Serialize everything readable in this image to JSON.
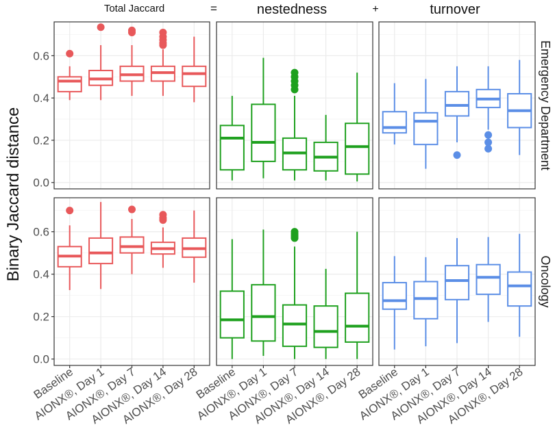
{
  "chart_data": {
    "type": "box",
    "y_axis_label": "Binary Jaccard distance",
    "column_titles": [
      {
        "label": "Total Jaccard",
        "operator": "="
      },
      {
        "label": "nestedness",
        "operator": "+"
      },
      {
        "label": "turnover",
        "operator": ""
      }
    ],
    "row_labels": [
      "Emergency Department",
      "Oncology"
    ],
    "categories": [
      "Baseline",
      "AIONX®, Day 1",
      "AIONX®, Day 7",
      "AIONX®, Day 14",
      "AIONX®, Day 28"
    ],
    "ylim": [
      -0.03,
      0.76
    ],
    "yticks": [
      0.0,
      0.2,
      0.4,
      0.6
    ],
    "ytick_labels": [
      "0.0",
      "0.2",
      "0.4",
      "0.6"
    ],
    "colors": {
      "total": "#e8585a",
      "nestedness": "#1ea01e",
      "turnover": "#5b8ee6"
    },
    "panels": [
      {
        "row": 0,
        "col": 0,
        "color": "total",
        "boxes": [
          {
            "whisker_low": 0.39,
            "q1": 0.43,
            "median": 0.48,
            "q3": 0.5,
            "whisker_high": 0.55,
            "outliers": [
              0.61
            ]
          },
          {
            "whisker_low": 0.39,
            "q1": 0.46,
            "median": 0.49,
            "q3": 0.53,
            "whisker_high": 0.65,
            "outliers": [
              0.735
            ]
          },
          {
            "whisker_low": 0.41,
            "q1": 0.48,
            "median": 0.51,
            "q3": 0.55,
            "whisker_high": 0.65,
            "outliers": [
              0.71,
              0.72
            ]
          },
          {
            "whisker_low": 0.41,
            "q1": 0.48,
            "median": 0.52,
            "q3": 0.55,
            "whisker_high": 0.63,
            "outliers": [
              0.65,
              0.66,
              0.675,
              0.69,
              0.71
            ]
          },
          {
            "whisker_low": 0.38,
            "q1": 0.455,
            "median": 0.515,
            "q3": 0.55,
            "whisker_high": 0.69,
            "outliers": []
          }
        ]
      },
      {
        "row": 0,
        "col": 1,
        "color": "nestedness",
        "boxes": [
          {
            "whisker_low": 0.01,
            "q1": 0.06,
            "median": 0.21,
            "q3": 0.27,
            "whisker_high": 0.41,
            "outliers": []
          },
          {
            "whisker_low": 0.02,
            "q1": 0.1,
            "median": 0.19,
            "q3": 0.37,
            "whisker_high": 0.59,
            "outliers": []
          },
          {
            "whisker_low": 0.01,
            "q1": 0.06,
            "median": 0.14,
            "q3": 0.21,
            "whisker_high": 0.41,
            "outliers": [
              0.44,
              0.46,
              0.48,
              0.5,
              0.52
            ]
          },
          {
            "whisker_low": 0.01,
            "q1": 0.055,
            "median": 0.12,
            "q3": 0.19,
            "whisker_high": 0.32,
            "outliers": []
          },
          {
            "whisker_low": 0.005,
            "q1": 0.04,
            "median": 0.17,
            "q3": 0.28,
            "whisker_high": 0.52,
            "outliers": []
          }
        ]
      },
      {
        "row": 0,
        "col": 2,
        "color": "turnover",
        "boxes": [
          {
            "whisker_low": 0.18,
            "q1": 0.235,
            "median": 0.26,
            "q3": 0.335,
            "whisker_high": 0.47,
            "outliers": []
          },
          {
            "whisker_low": 0.065,
            "q1": 0.18,
            "median": 0.29,
            "q3": 0.33,
            "whisker_high": 0.49,
            "outliers": []
          },
          {
            "whisker_low": 0.19,
            "q1": 0.315,
            "median": 0.365,
            "q3": 0.43,
            "whisker_high": 0.55,
            "outliers": [
              0.13
            ]
          },
          {
            "whisker_low": 0.25,
            "q1": 0.355,
            "median": 0.395,
            "q3": 0.44,
            "whisker_high": 0.55,
            "outliers": [
              0.16,
              0.19,
              0.225
            ]
          },
          {
            "whisker_low": 0.13,
            "q1": 0.26,
            "median": 0.34,
            "q3": 0.42,
            "whisker_high": 0.58,
            "outliers": []
          }
        ]
      },
      {
        "row": 1,
        "col": 0,
        "color": "total",
        "boxes": [
          {
            "whisker_low": 0.325,
            "q1": 0.435,
            "median": 0.485,
            "q3": 0.53,
            "whisker_high": 0.63,
            "outliers": [
              0.7
            ]
          },
          {
            "whisker_low": 0.33,
            "q1": 0.45,
            "median": 0.5,
            "q3": 0.57,
            "whisker_high": 0.74,
            "outliers": []
          },
          {
            "whisker_low": 0.4,
            "q1": 0.5,
            "median": 0.53,
            "q3": 0.575,
            "whisker_high": 0.66,
            "outliers": [
              0.705
            ]
          },
          {
            "whisker_low": 0.43,
            "q1": 0.495,
            "median": 0.52,
            "q3": 0.55,
            "whisker_high": 0.62,
            "outliers": [
              0.655,
              0.665,
              0.68
            ]
          },
          {
            "whisker_low": 0.36,
            "q1": 0.48,
            "median": 0.52,
            "q3": 0.57,
            "whisker_high": 0.7,
            "outliers": []
          }
        ]
      },
      {
        "row": 1,
        "col": 1,
        "color": "nestedness",
        "boxes": [
          {
            "whisker_low": 0.0,
            "q1": 0.1,
            "median": 0.185,
            "q3": 0.32,
            "whisker_high": 0.565,
            "outliers": []
          },
          {
            "whisker_low": 0.015,
            "q1": 0.085,
            "median": 0.2,
            "q3": 0.35,
            "whisker_high": 0.61,
            "outliers": []
          },
          {
            "whisker_low": 0.0,
            "q1": 0.06,
            "median": 0.165,
            "q3": 0.255,
            "whisker_high": 0.53,
            "outliers": [
              0.57,
              0.58,
              0.59,
              0.6
            ]
          },
          {
            "whisker_low": 0.0,
            "q1": 0.055,
            "median": 0.13,
            "q3": 0.25,
            "whisker_high": 0.425,
            "outliers": []
          },
          {
            "whisker_low": 0.0,
            "q1": 0.08,
            "median": 0.155,
            "q3": 0.31,
            "whisker_high": 0.6,
            "outliers": []
          }
        ]
      },
      {
        "row": 1,
        "col": 2,
        "color": "turnover",
        "boxes": [
          {
            "whisker_low": 0.045,
            "q1": 0.235,
            "median": 0.275,
            "q3": 0.36,
            "whisker_high": 0.485,
            "outliers": []
          },
          {
            "whisker_low": 0.06,
            "q1": 0.19,
            "median": 0.285,
            "q3": 0.365,
            "whisker_high": 0.48,
            "outliers": []
          },
          {
            "whisker_low": 0.075,
            "q1": 0.28,
            "median": 0.37,
            "q3": 0.44,
            "whisker_high": 0.57,
            "outliers": []
          },
          {
            "whisker_low": 0.175,
            "q1": 0.305,
            "median": 0.385,
            "q3": 0.445,
            "whisker_high": 0.575,
            "outliers": []
          },
          {
            "whisker_low": 0.105,
            "q1": 0.25,
            "median": 0.345,
            "q3": 0.41,
            "whisker_high": 0.59,
            "outliers": []
          }
        ]
      }
    ]
  }
}
